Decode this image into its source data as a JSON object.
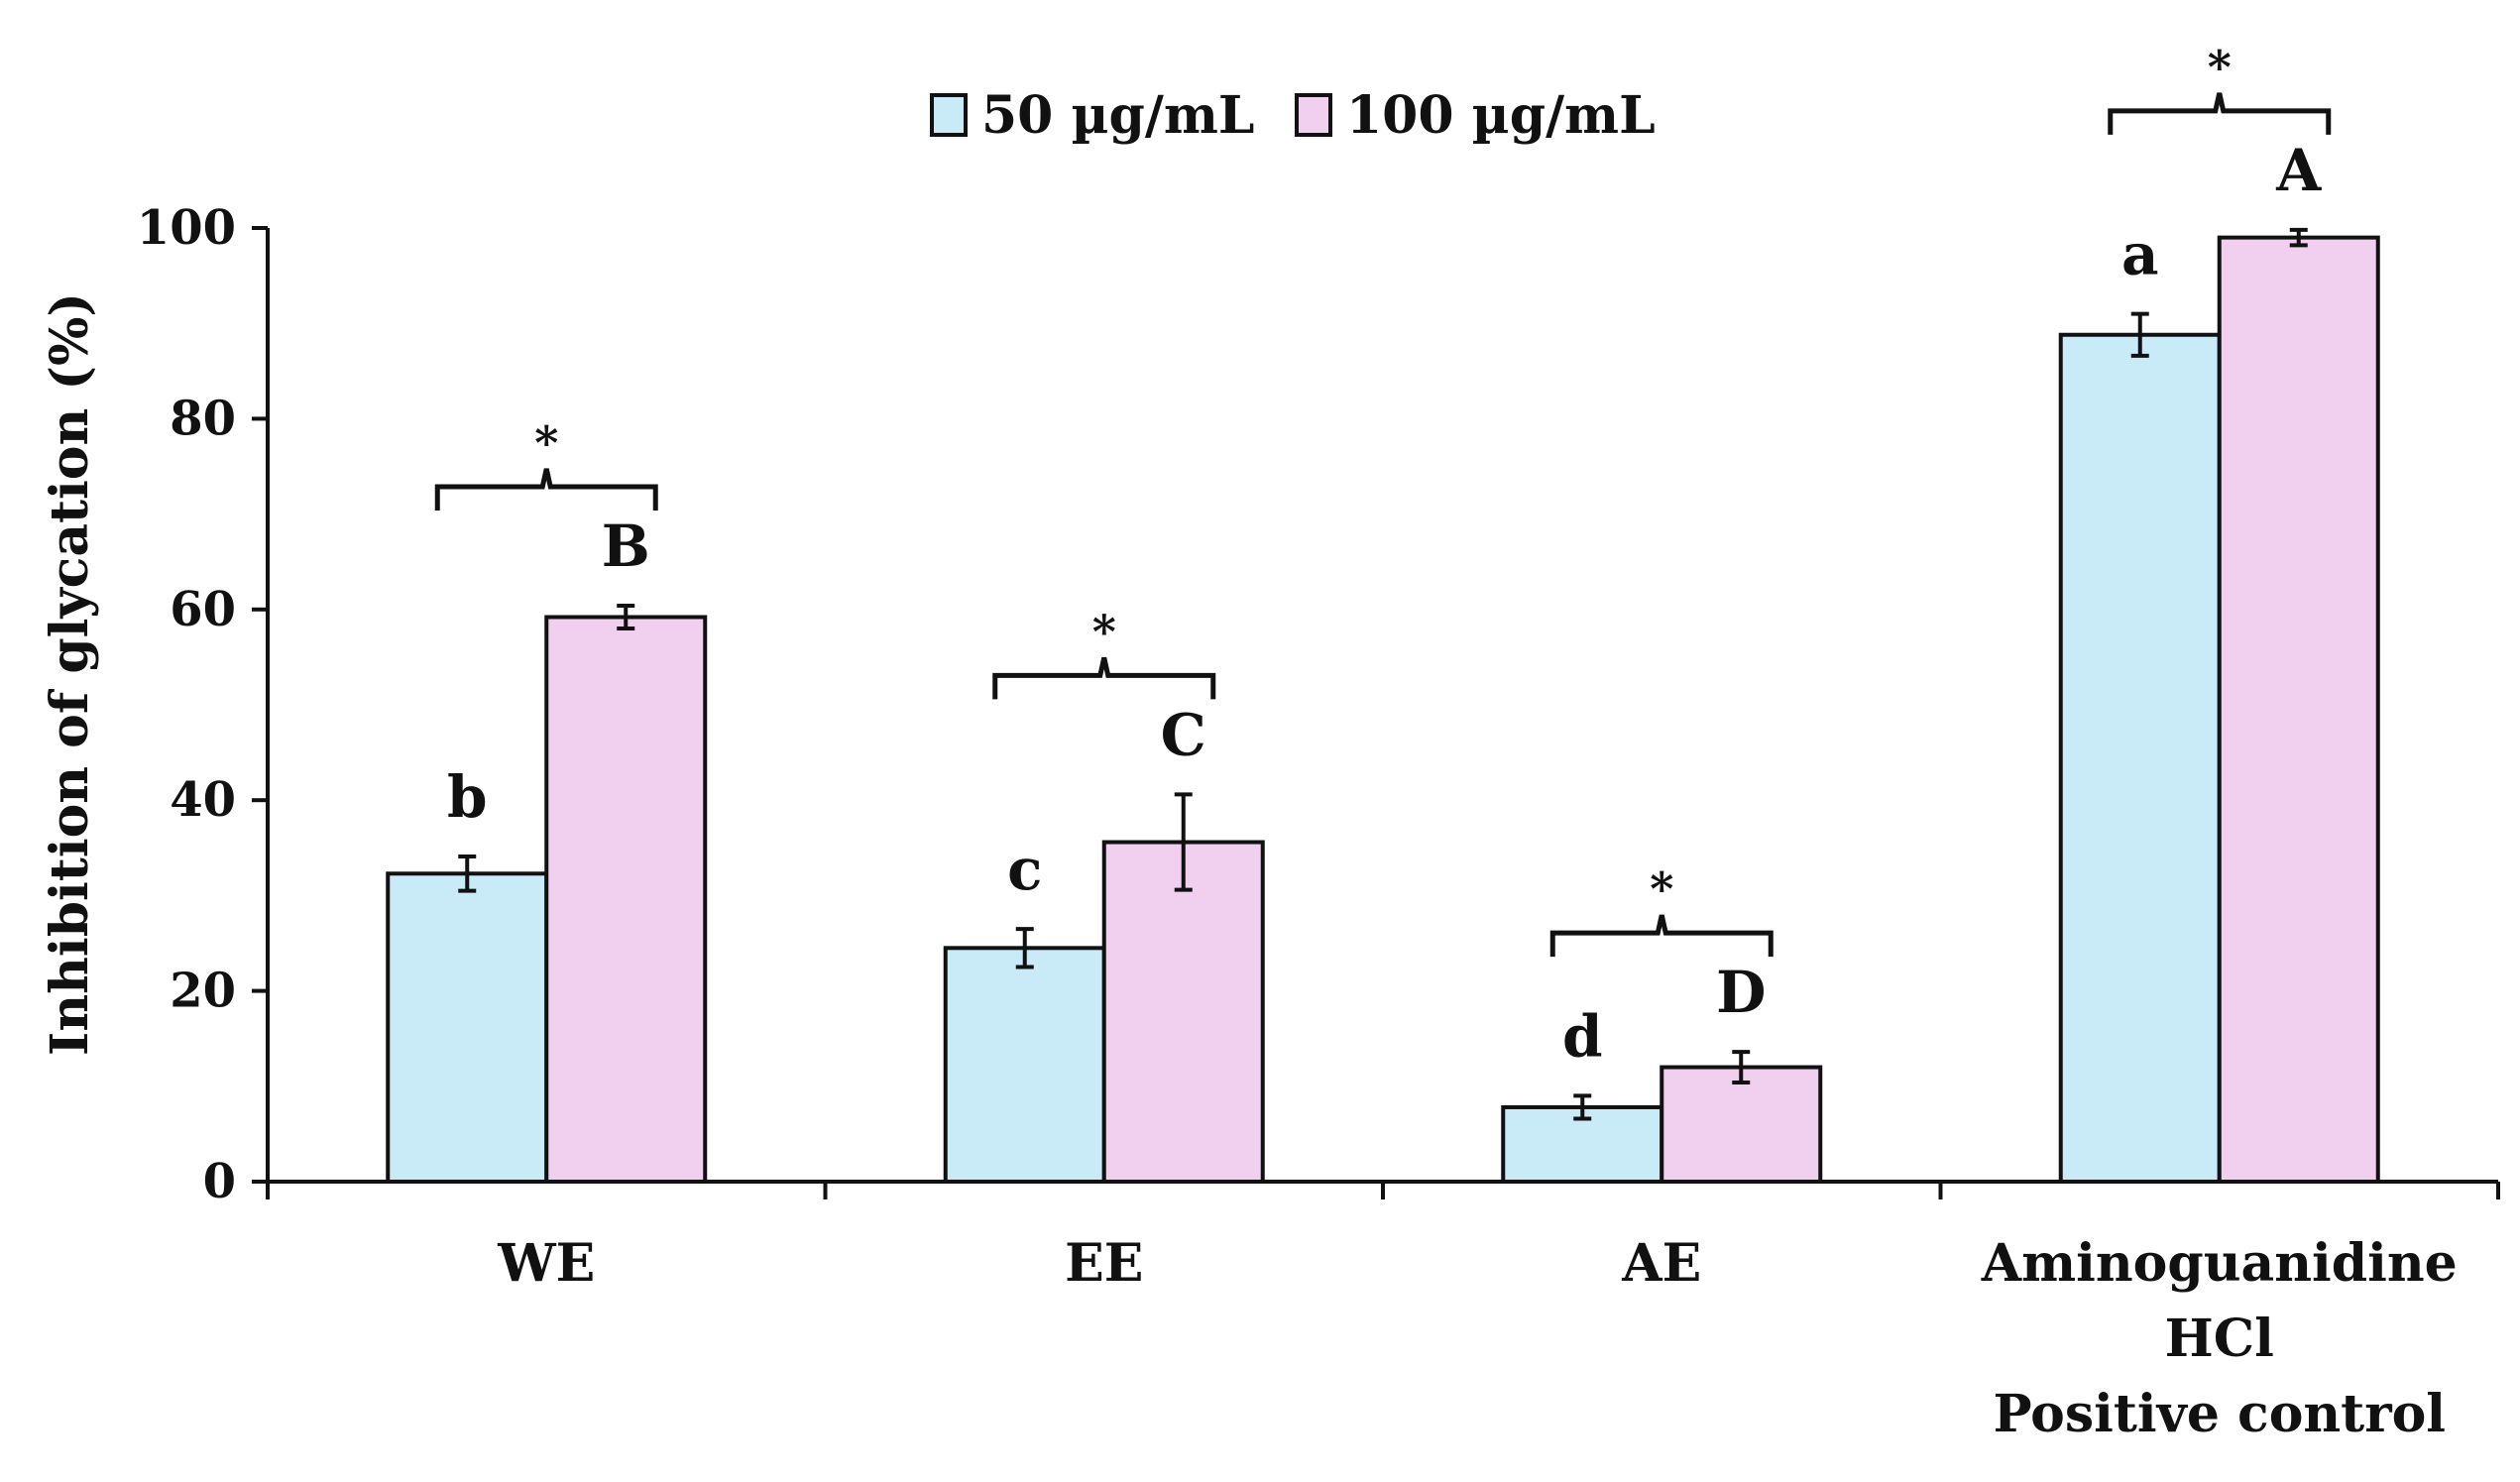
{
  "chart_data": {
    "type": "bar",
    "title": "",
    "xlabel": "",
    "ylabel": "Inhibition of glycation (%)",
    "ylim": [
      0,
      100
    ],
    "yticks": [
      0,
      20,
      40,
      60,
      80,
      100
    ],
    "grid": false,
    "legend": "top-center",
    "categories": [
      [
        "WE"
      ],
      [
        "EE"
      ],
      [
        "AE"
      ],
      [
        "Aminoguanidine",
        "HCl",
        "Positive control"
      ]
    ],
    "series": [
      {
        "name": "50 µg/mL",
        "color": "#c9ebf8",
        "values": [
          32.3,
          24.5,
          7.8,
          88.8
        ],
        "errors": [
          1.8,
          2.0,
          1.2,
          2.2
        ],
        "letters": [
          "b",
          "c",
          "d",
          "a"
        ]
      },
      {
        "name": "100  µg/mL",
        "color": "#f1cfee",
        "values": [
          59.2,
          35.6,
          12.0,
          99.0
        ],
        "errors": [
          1.2,
          5.0,
          1.6,
          0.8
        ],
        "letters": [
          "B",
          "C",
          "D",
          "A"
        ]
      }
    ],
    "significance": [
      "*",
      "*",
      "*",
      "*"
    ]
  }
}
